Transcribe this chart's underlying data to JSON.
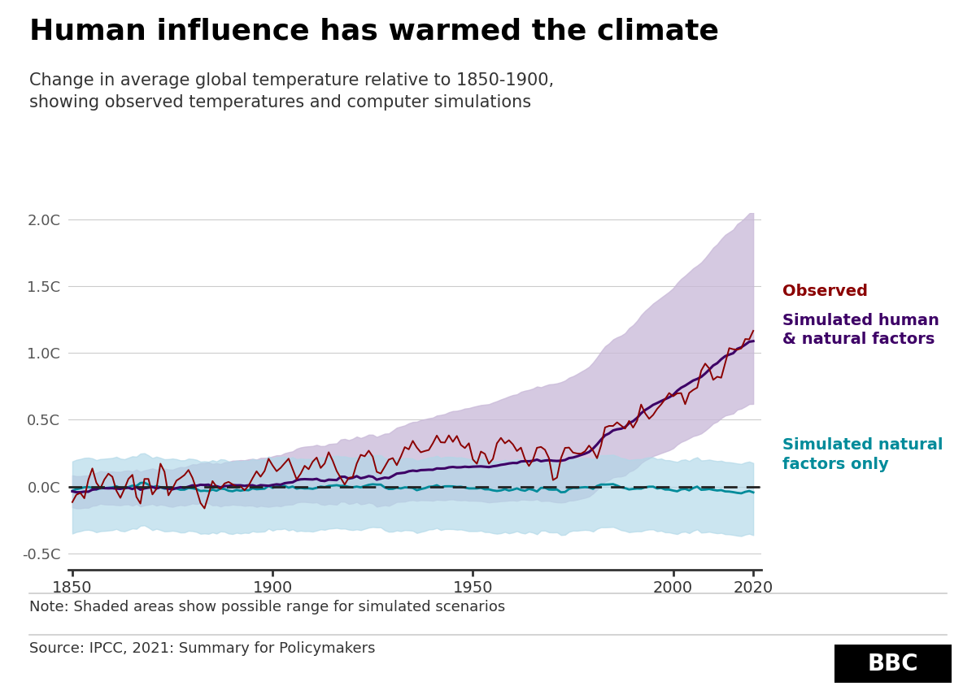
{
  "title": "Human influence has warmed the climate",
  "subtitle": "Change in average global temperature relative to 1850-1900,\nshowing observed temperatures and computer simulations",
  "note": "Note: Shaded areas show possible range for simulated scenarios",
  "source": "Source: IPCC, 2021: Summary for Policymakers",
  "ylim": [
    -0.62,
    2.05
  ],
  "xlim": [
    1849,
    2022
  ],
  "yticks": [
    -0.5,
    0.0,
    0.5,
    1.0,
    1.5,
    2.0
  ],
  "ytick_labels": [
    "-0.5C",
    "0.0C",
    "0.5C",
    "1.0C",
    "1.5C",
    "2.0C"
  ],
  "xticks": [
    1850,
    1900,
    1950,
    2000,
    2020
  ],
  "background_color": "#ffffff",
  "title_color": "#000000",
  "subtitle_color": "#333333",
  "observed_color": "#8b0000",
  "human_natural_color": "#3d0066",
  "natural_only_color": "#008b9a",
  "human_natural_band_color": "#c8b8d8",
  "natural_only_band_color": "#b0d8e8",
  "zero_line_color": "#222222",
  "grid_color": "#cccccc"
}
